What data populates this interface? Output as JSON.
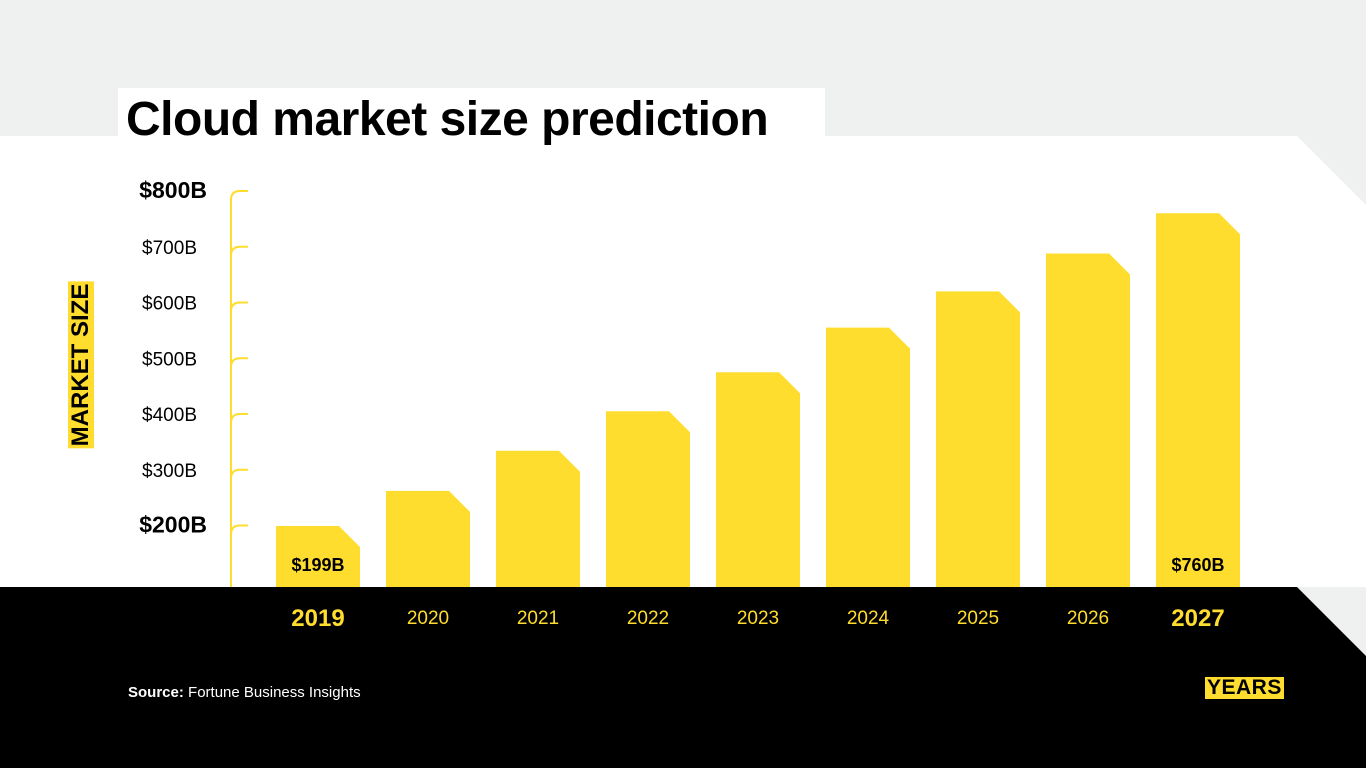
{
  "title": "Cloud market size prediction",
  "source": {
    "label": "Source:",
    "text": "Fortune Business Insights"
  },
  "colors": {
    "accent": "#ffdd2e",
    "dark": "#000000",
    "light": "#eef1f0",
    "panel": "#ffffff"
  },
  "chart_data": {
    "type": "bar",
    "title": "Cloud market size prediction",
    "xlabel": "YEARS",
    "ylabel": "MARKET SIZE",
    "categories": [
      "2019",
      "2020",
      "2021",
      "2022",
      "2023",
      "2024",
      "2025",
      "2026",
      "2027"
    ],
    "values": [
      199,
      262,
      334,
      405,
      475,
      555,
      620,
      688,
      760
    ],
    "unit": "$B",
    "ylim": [
      120,
      820
    ],
    "yticks": [
      {
        "value": 200,
        "label": "$200B",
        "bold": true
      },
      {
        "value": 300,
        "label": "$300B",
        "bold": false
      },
      {
        "value": 400,
        "label": "$400B",
        "bold": false
      },
      {
        "value": 500,
        "label": "$500B",
        "bold": false
      },
      {
        "value": 600,
        "label": "$600B",
        "bold": false
      },
      {
        "value": 700,
        "label": "$700B",
        "bold": false
      },
      {
        "value": 800,
        "label": "$800B",
        "bold": true
      }
    ],
    "bold_categories": [
      "2019",
      "2027"
    ],
    "data_labels": [
      {
        "category": "2019",
        "text": "$199B"
      },
      {
        "category": "2027",
        "text": "$760B"
      }
    ],
    "grid": false,
    "legend": "none"
  }
}
